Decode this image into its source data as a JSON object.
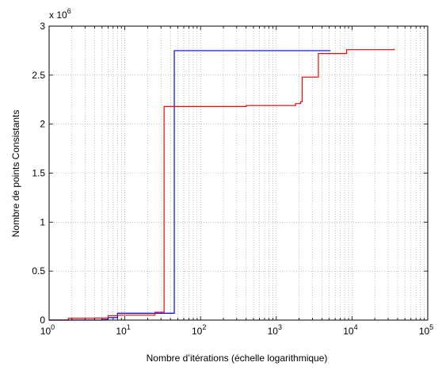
{
  "chart_data": {
    "type": "line",
    "title": "",
    "xlabel": "Nombre d’itérations (échelle logarithmique)",
    "ylabel": "Nombre de points Consistants",
    "x_scale": "log",
    "xlim": [
      1,
      100000
    ],
    "ylim": [
      0,
      3000000
    ],
    "y_multiplier_label": "x 10",
    "y_multiplier_exponent": "6",
    "grid": true,
    "legend": "none",
    "x_ticks": [
      1,
      10,
      100,
      1000,
      10000,
      100000
    ],
    "x_tick_labels": [
      {
        "base": "10",
        "exp": "0"
      },
      {
        "base": "10",
        "exp": "1"
      },
      {
        "base": "10",
        "exp": "2"
      },
      {
        "base": "10",
        "exp": "3"
      },
      {
        "base": "10",
        "exp": "4"
      },
      {
        "base": "10",
        "exp": "5"
      }
    ],
    "y_ticks": [
      0,
      500000,
      1000000,
      1500000,
      2000000,
      2500000,
      3000000
    ],
    "y_tick_labels": [
      "0",
      "0.5",
      "1",
      "1.5",
      "2",
      "2.5",
      "3"
    ],
    "series": [
      {
        "color": "#0000ff",
        "step": true,
        "points": [
          [
            1,
            0
          ],
          [
            5,
            5000
          ],
          [
            6,
            25000
          ],
          [
            8,
            70000
          ],
          [
            45,
            70000
          ],
          [
            45,
            2750000
          ],
          [
            5200,
            2750000
          ]
        ]
      },
      {
        "color": "#ff0000",
        "step": true,
        "points": [
          [
            1,
            0
          ],
          [
            1.8,
            18000
          ],
          [
            4,
            20000
          ],
          [
            6,
            45000
          ],
          [
            8,
            50000
          ],
          [
            25,
            80000
          ],
          [
            33,
            80000
          ],
          [
            33,
            2180000
          ],
          [
            400,
            2190000
          ],
          [
            1800,
            2210000
          ],
          [
            2100,
            2230000
          ],
          [
            2200,
            2480000
          ],
          [
            3600,
            2480000
          ],
          [
            3600,
            2720000
          ],
          [
            8500,
            2760000
          ],
          [
            36000,
            2770000
          ]
        ]
      }
    ]
  }
}
